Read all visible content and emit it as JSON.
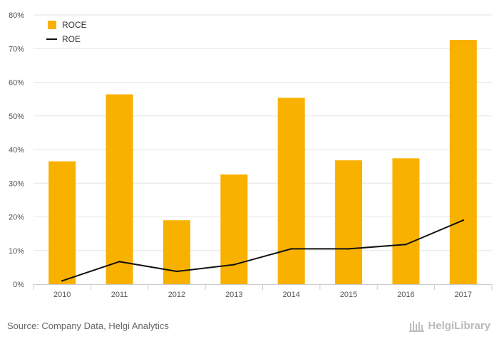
{
  "chart_data": {
    "type": "bar",
    "categories": [
      "2010",
      "2011",
      "2012",
      "2013",
      "2014",
      "2015",
      "2016",
      "2017"
    ],
    "series": [
      {
        "name": "ROCE",
        "kind": "bar",
        "color": "#f9b100",
        "values": [
          36.5,
          56.4,
          19.0,
          32.6,
          55.4,
          36.8,
          37.4,
          72.6
        ]
      },
      {
        "name": "ROE",
        "kind": "line",
        "color": "#111111",
        "values": [
          1.0,
          6.7,
          3.8,
          5.8,
          10.5,
          10.5,
          11.8,
          19.0
        ]
      }
    ],
    "yticks": [
      "0%",
      "10%",
      "20%",
      "30%",
      "40%",
      "50%",
      "60%",
      "70%",
      "80%"
    ],
    "ylim": [
      0,
      80
    ],
    "grid": true,
    "legend_position": "top-left"
  },
  "footer": {
    "source": "Source: Company Data, Helgi Analytics",
    "brand": "HelgiLibrary"
  }
}
